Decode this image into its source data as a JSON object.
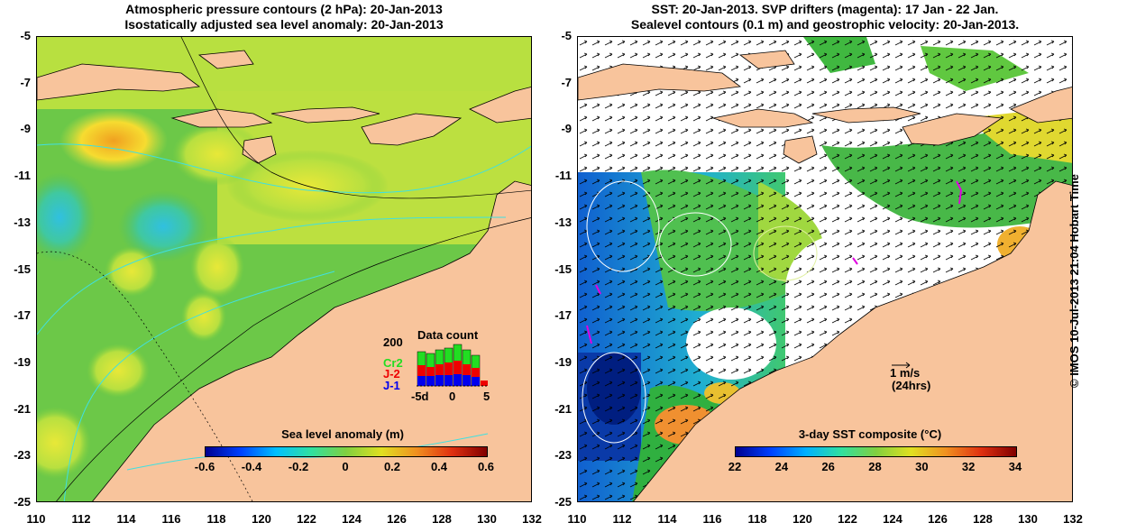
{
  "left_panel": {
    "title_line1": "Atmospheric pressure contours (2 hPa): 20-Jan-2013",
    "title_line2": "Isostatically adjusted sea level anomaly: 20-Jan-2013",
    "colorbar": {
      "title": "Sea level anomaly (m)",
      "ticks": [
        "-0.6",
        "-0.4",
        "-0.2",
        "0",
        "0.2",
        "0.4",
        "0.6"
      ]
    },
    "data_count": {
      "title": "Data count",
      "y_label": "200",
      "series": [
        "Cr2",
        "J-2",
        "J-1"
      ],
      "series_colors": [
        "#22dd22",
        "#ee0000",
        "#0000ee"
      ],
      "x_labels": [
        "-5d",
        "0",
        "5"
      ]
    }
  },
  "right_panel": {
    "title_line1": "SST: 20-Jan-2013. SVP drifters (magenta): 17 Jan - 22 Jan.",
    "title_line2": "Sealevel contours (0.1 m) and geostrophic velocity: 20-Jan-2013.",
    "colorbar": {
      "title": "3-day SST composite (°C)",
      "ticks": [
        "22",
        "24",
        "26",
        "28",
        "30",
        "32",
        "34"
      ]
    },
    "velocity_scale": {
      "line1": "1 m/s",
      "line2": "(24hrs)"
    }
  },
  "axes": {
    "y_ticks": [
      "-5",
      "-7",
      "-9",
      "-11",
      "-13",
      "-15",
      "-17",
      "-19",
      "-21",
      "-23",
      "-25"
    ],
    "x_ticks": [
      "110",
      "112",
      "114",
      "116",
      "118",
      "120",
      "122",
      "124",
      "126",
      "128",
      "130",
      "132"
    ]
  },
  "copyright": "© IMOS 10-Jul-2013 21:04 Hobart Time",
  "colors": {
    "land": "#f8c49c",
    "ocean_mid": "#6ccf3a",
    "cloud": "#ffffff"
  }
}
